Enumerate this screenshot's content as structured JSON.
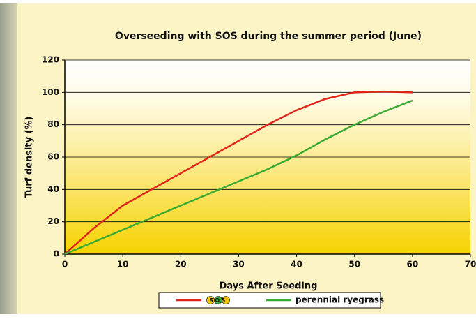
{
  "chart_data": {
    "type": "line",
    "title": "Overseeding with SOS during the summer period (June)",
    "x_label": "Days After Seeding",
    "y_label": "Turf density (%)",
    "x": [
      0,
      5,
      10,
      15,
      20,
      25,
      30,
      35,
      40,
      45,
      50,
      55,
      60
    ],
    "series": [
      {
        "name": "SOS",
        "color": "#e2231a",
        "values": [
          0,
          16,
          30,
          40,
          50,
          60,
          70,
          80,
          89,
          96,
          100,
          100.5,
          100
        ]
      },
      {
        "name": "perennial ryegrass",
        "color": "#3aaa35",
        "values": [
          0,
          7.5,
          15,
          22.5,
          30,
          37.5,
          45,
          52.5,
          61,
          71,
          80,
          88,
          95
        ]
      }
    ],
    "xlim": [
      0,
      70
    ],
    "xticks": [
      0,
      10,
      20,
      30,
      40,
      50,
      60,
      70
    ],
    "ylim": [
      0,
      120
    ],
    "yticks": [
      0,
      20,
      40,
      60,
      80,
      100,
      120
    ],
    "grid": true,
    "legend": "bottom"
  }
}
